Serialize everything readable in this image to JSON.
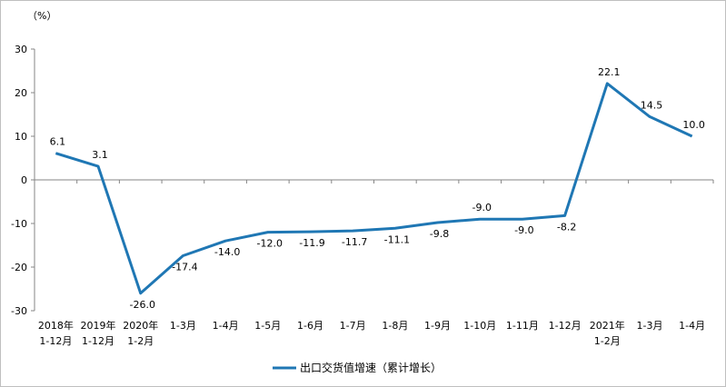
{
  "chart_data": {
    "type": "line",
    "unit_label": "（%）",
    "ylim": [
      -30,
      30
    ],
    "yticks": [
      30,
      20,
      10,
      0,
      -10,
      -20,
      -30
    ],
    "grid": false,
    "legend_position": "bottom",
    "categories": [
      [
        "2018年",
        "1-12月"
      ],
      [
        "2019年",
        "1-12月"
      ],
      [
        "2020年",
        "1-2月"
      ],
      [
        "1-3月"
      ],
      [
        "1-4月"
      ],
      [
        "1-5月"
      ],
      [
        "1-6月"
      ],
      [
        "1-7月"
      ],
      [
        "1-8月"
      ],
      [
        "1-9月"
      ],
      [
        "1-10月"
      ],
      [
        "1-11月"
      ],
      [
        "1-12月"
      ],
      [
        "2021年",
        "1-2月"
      ],
      [
        "1-3月"
      ],
      [
        "1-4月"
      ]
    ],
    "series": [
      {
        "name": "出口交货值增速（累计增长）",
        "color": "#1f77b4",
        "values": [
          6.1,
          3.1,
          -26.0,
          -17.4,
          -14.0,
          -12.0,
          -11.9,
          -11.7,
          -11.1,
          -9.8,
          -9.0,
          -9.0,
          -8.2,
          22.1,
          14.5,
          10.0
        ],
        "labels": [
          "6.1",
          "3.1",
          "-26.0",
          "-17.4",
          "-14.0",
          "-12.0",
          "-11.9",
          "-11.7",
          "-11.1",
          "-9.8",
          "-9.0",
          "-9.0",
          "-8.2",
          "22.1",
          "14.5",
          "10.0"
        ]
      }
    ]
  }
}
